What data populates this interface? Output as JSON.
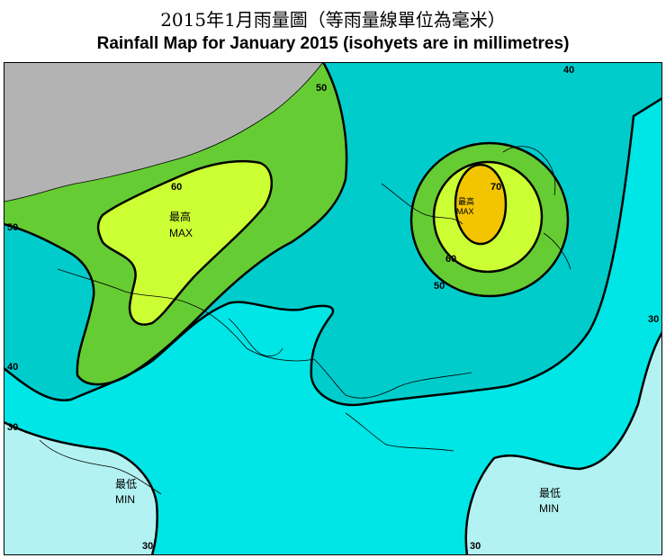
{
  "title": {
    "zh": "2015年1月雨量圖（等雨量線單位為毫米）",
    "en": "Rainfall Map for January 2015 (isohyets are in millimetres)"
  },
  "isohyet_labels": {
    "c40_ne": "40",
    "c50_n": "50",
    "c50_w": "50",
    "c40_w": "40",
    "c30_w": "30",
    "c30_s": "30",
    "c30_se": "30",
    "c30_e": "30",
    "c60_w": "60",
    "c60_e": "60",
    "c50_e": "50",
    "c70": "70"
  },
  "zones": {
    "max_west_zh": "最高",
    "max_west_en": "MAX",
    "max_east_zh": "最高",
    "max_east_en": "MAX",
    "min_west_zh": "最低",
    "min_west_en": "MIN",
    "min_east_zh": "最低",
    "min_east_en": "MIN"
  },
  "colors": {
    "band_30_40": "#00e6e6",
    "band_40_50": "#00cccc",
    "band_50_60": "#66cc33",
    "band_60_70": "#ccff33",
    "band_70_plus": "#f2c500",
    "band_below_30": "#b3f2f2",
    "land_outside": "#b3b3b3"
  }
}
